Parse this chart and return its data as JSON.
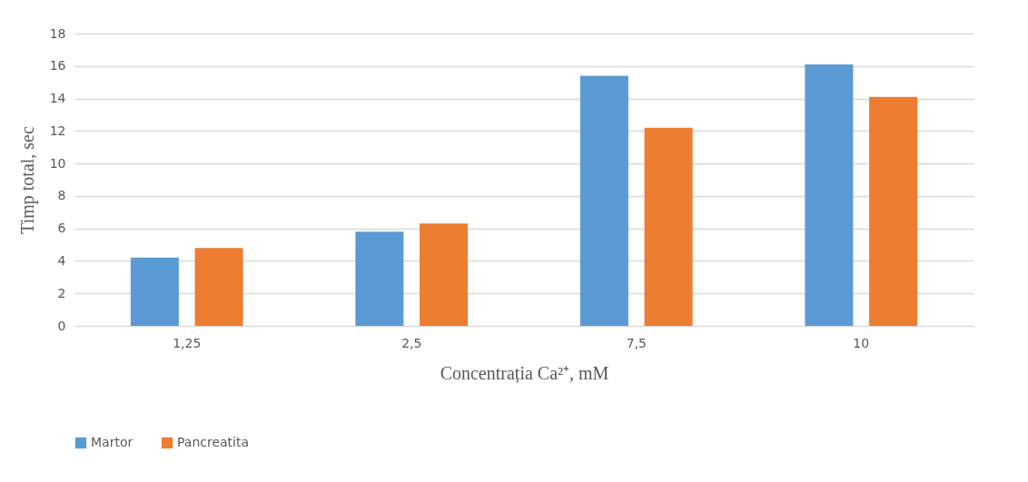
{
  "chart_data": {
    "type": "bar",
    "xlabel": "Concentrația Ca²⁺, mM",
    "ylabel": "Timp total, sec",
    "categories": [
      "1,25",
      "2,5",
      "7,5",
      "10"
    ],
    "series": [
      {
        "name": "Martor",
        "color": "#5b9bd5",
        "values": [
          4.2,
          5.8,
          15.4,
          16.1
        ]
      },
      {
        "name": "Pancreatita",
        "color": "#ed7d31",
        "values": [
          4.8,
          6.3,
          12.2,
          14.1
        ]
      }
    ],
    "ylim": [
      0,
      18
    ],
    "yticks": [
      0,
      2,
      4,
      6,
      8,
      10,
      12,
      14,
      16,
      18
    ],
    "grid": "y",
    "legend": "bottom"
  }
}
